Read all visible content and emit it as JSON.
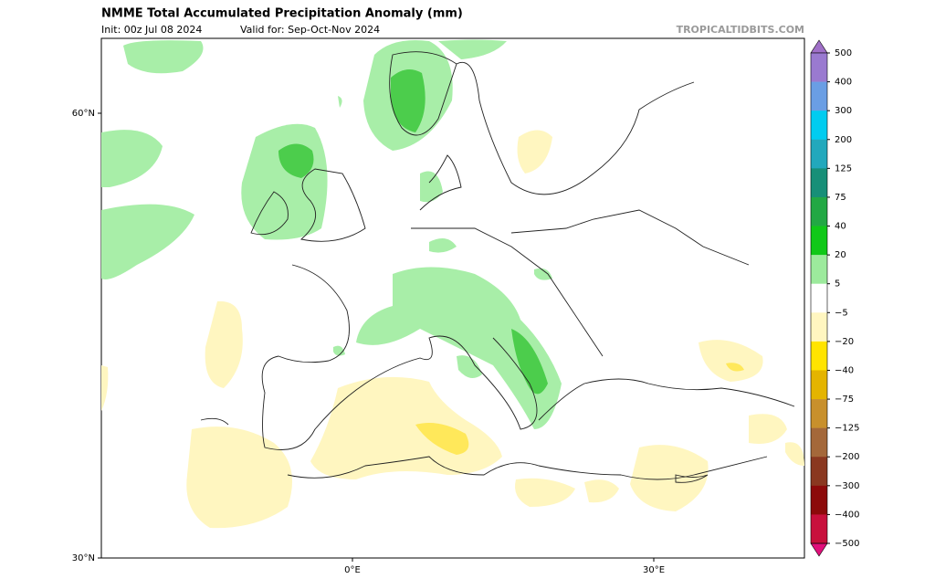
{
  "header": {
    "title": "NMME Total Accumulated Precipitation Anomaly (mm)",
    "init": "Init: 00z Jul 08 2024",
    "valid": "Valid for: Sep-Oct-Nov 2024",
    "source": "TROPICALTIDBITS.COM"
  },
  "map": {
    "lat_labels": [
      "60°N",
      "30°N"
    ],
    "lon_labels": [
      "0°E",
      "30°E"
    ]
  },
  "colorbar": {
    "labels": [
      "500",
      "400",
      "300",
      "200",
      "125",
      "75",
      "40",
      "20",
      "5",
      "−5",
      "−20",
      "−40",
      "−75",
      "−125",
      "−200",
      "−300",
      "−400",
      "−500"
    ],
    "colors": [
      "#a070c8",
      "#9a7ad0",
      "#6a9ee4",
      "#00ccf0",
      "#22a8bc",
      "#178f78",
      "#22a844",
      "#10c818",
      "#9cea9c",
      "#ffffff",
      "#fff6c0",
      "#ffe400",
      "#e4b400",
      "#c8902c",
      "#a4683a",
      "#8a3820",
      "#8c0a0a",
      "#c8103c",
      "#e0107a"
    ]
  }
}
